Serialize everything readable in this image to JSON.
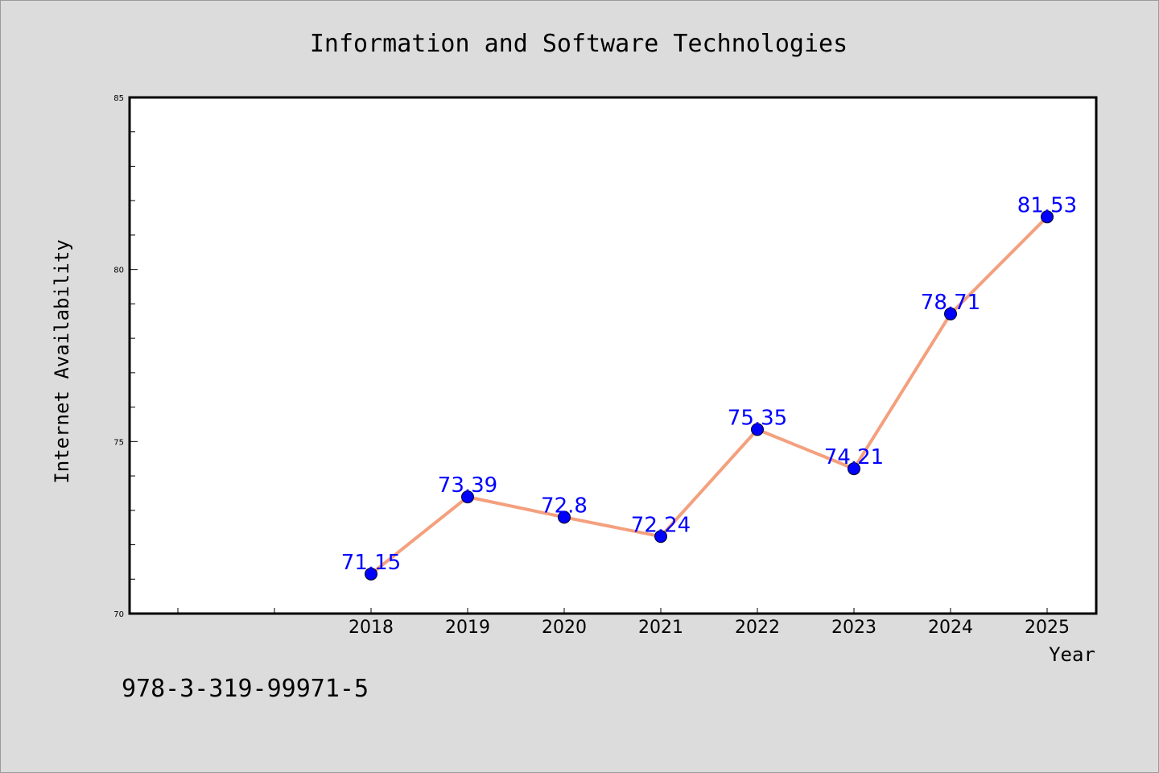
{
  "figure": {
    "title": "Information and Software Technologies",
    "footer": "978-3-319-99971-5",
    "background": "#dcdcdc"
  },
  "chart_data": {
    "type": "line",
    "title": "Information and Software Technologies",
    "xlabel": "Year",
    "ylabel": "Internet Availability",
    "categories": [
      "2018",
      "2019",
      "2020",
      "2021",
      "2022",
      "2023",
      "2024",
      "2025"
    ],
    "series": [
      {
        "values": [
          71.15,
          73.39,
          72.8,
          72.24,
          75.35,
          74.21,
          78.71,
          81.53
        ],
        "data_labels": [
          "71.15",
          "73.39",
          "72.8",
          "72.24",
          "75.35",
          "74.21",
          "78.71",
          "81.53"
        ],
        "line_color": "#f4a07e",
        "marker_color": "#0000ff",
        "label_color": "#0000ff"
      }
    ],
    "ylim": [
      70,
      85
    ],
    "y_major_ticks": [
      70,
      75,
      80,
      85
    ],
    "y_minor_step": 1,
    "x_extra_leading_ticks": 2,
    "grid": false,
    "legend": "none",
    "plot_background": "#ffffff"
  }
}
